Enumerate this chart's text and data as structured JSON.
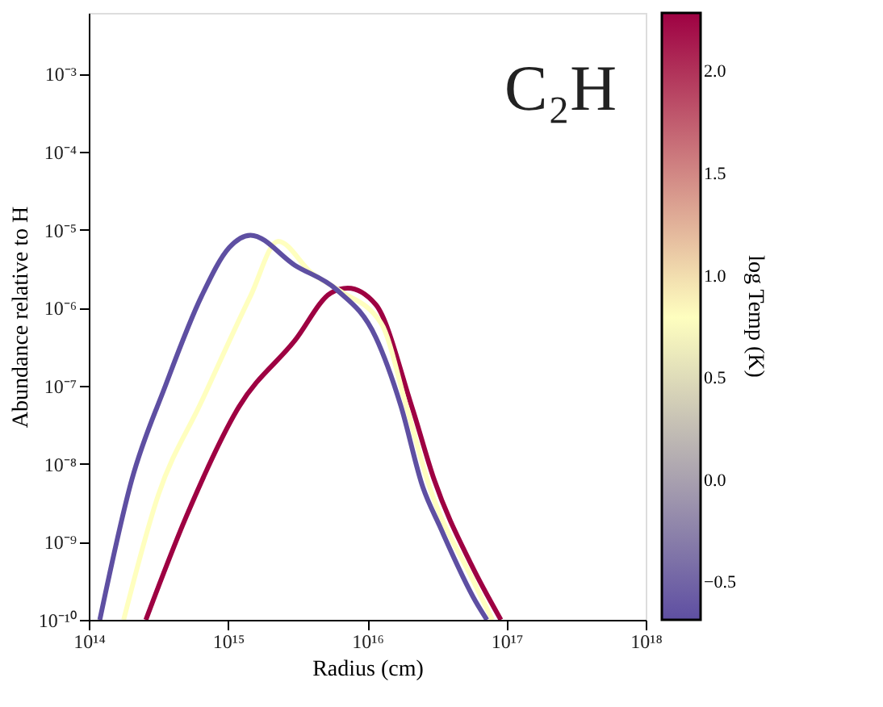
{
  "chart_data": {
    "type": "line",
    "xlabel": "Radius (cm)",
    "ylabel": "Abundance relative to H",
    "clabel": "log Temp (K)",
    "annotations": [
      "C₂H"
    ],
    "log": "xy",
    "grid": false,
    "xlim": [
      100000000000000.0,
      1e+18
    ],
    "xticks": [
      {
        "value": 100000000000000.0,
        "label": "10¹⁴"
      },
      {
        "value": 1000000000000000.0,
        "label": "10¹⁵"
      },
      {
        "value": 1e+16,
        "label": "10¹⁶"
      },
      {
        "value": 1e+17,
        "label": "10¹⁷"
      },
      {
        "value": 1e+18,
        "label": "10¹⁸"
      }
    ],
    "ylim": [
      1e-10,
      0.006
    ],
    "yticks": [
      {
        "value": 1e-10,
        "label": "10⁻¹⁰"
      },
      {
        "value": 1e-09,
        "label": "10⁻⁹"
      },
      {
        "value": 1e-08,
        "label": "10⁻⁸"
      },
      {
        "value": 1e-07,
        "label": "10⁻⁷"
      },
      {
        "value": 1e-06,
        "label": "10⁻⁶"
      },
      {
        "value": 1e-05,
        "label": "10⁻⁵"
      },
      {
        "value": 0.0001,
        "label": "10⁻⁴"
      },
      {
        "value": 0.001,
        "label": "10⁻³"
      }
    ],
    "clim": [
      -0.68,
      2.29
    ],
    "cticks": [
      {
        "value": -0.5,
        "label": "−0.5"
      },
      {
        "value": 0,
        "label": "0.0"
      },
      {
        "value": 0.5,
        "label": "0.5"
      },
      {
        "value": 1.0,
        "label": "1.0"
      },
      {
        "value": 1.5,
        "label": "1.5"
      },
      {
        "value": 2.0,
        "label": "2.0"
      }
    ],
    "series": [
      {
        "color": "#5e4fa2",
        "x": [
          120000000000000.0,
          204000000000000.0,
          355000000000000.0,
          646000000000000.0,
          1020000000000000.0,
          1450000000000000.0,
          3020000000000000.0,
          6030000000000000.0,
          1.15e+16,
          1.74e+16,
          2.51e+16,
          3.31e+16,
          6.03e+16,
          7.24e+16
        ],
        "values": [
          1e-10,
          6.3e-09,
          1e-07,
          1.41e-06,
          5.9e-06,
          8.5e-06,
          3.5e-06,
          1.7e-06,
          4.2e-07,
          5.6e-08,
          5e-09,
          1.6e-09,
          1.7e-10,
          1e-10
        ]
      },
      {
        "color": "#ffffbf",
        "x": [
          178000000000000.0,
          316000000000000.0,
          646000000000000.0,
          1450000000000000.0,
          2290000000000000.0,
          3980000000000000.0,
          6310000000000000.0,
          1.26e+16,
          1.91e+16,
          2.75e+16,
          5.75e+16,
          7.94e+16
        ],
        "values": [
          1e-10,
          4e-09,
          6.3e-08,
          1.41e-06,
          7.1e-06,
          2.8e-06,
          1.66e-06,
          6.3e-07,
          5.5e-08,
          5.6e-09,
          3.2e-10,
          1e-10
        ]
      },
      {
        "color": "#9e0142",
        "x": [
          257000000000000.0,
          501000000000000.0,
          1200000000000000.0,
          3020000000000000.0,
          5500000000000000.0,
          7240000000000000.0,
          1.15e+16,
          2.09e+16,
          3.02e+16,
          5.62e+16,
          9.12e+16
        ],
        "values": [
          1e-10,
          2.1e-09,
          5.4e-08,
          3.8e-07,
          1.55e-06,
          1.78e-06,
          1.1e-06,
          5.4e-08,
          6.3e-09,
          5e-10,
          1e-10
        ]
      }
    ]
  }
}
